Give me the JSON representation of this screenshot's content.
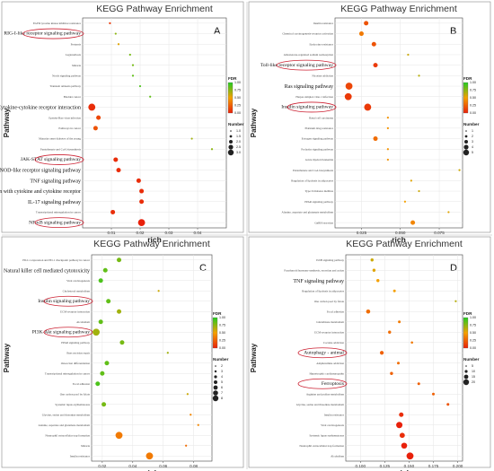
{
  "legend_labels": {
    "fdr": "FDR",
    "number": "Number"
  },
  "colors": {
    "low_fdr": "#e8200a",
    "mid_fdr": "#f5a000",
    "high_fdr": "#22cc22"
  },
  "chart_data": [
    {
      "type": "scatter",
      "title": "KEGG Pathway Enrichment",
      "panel_letter": "A",
      "xlabel": "rich",
      "ylabel": "Pathway",
      "xlim": [
        0,
        0.05
      ],
      "xticks": [
        0.01,
        0.02,
        0.03,
        0.04
      ],
      "tick_labels": [
        "0.01",
        "0.02",
        "0.03",
        "0.04"
      ],
      "fdr_colorbar": {
        "min": 0,
        "max": 1,
        "ticks": [
          "1.00",
          "0.75",
          "0.50",
          "0.25",
          "0.00"
        ]
      },
      "size_legend": [
        "1.0",
        "1.5",
        "2.0",
        "2.5",
        "3.0"
      ],
      "points": [
        {
          "pathway": "EGFR tyrosine kinase inhibitor resistance",
          "rich": 0.0095,
          "fdr": 0.1,
          "count": 1
        },
        {
          "pathway": "RIG-I-like receptor signaling pathway",
          "rich": 0.0115,
          "fdr": 0.75,
          "count": 1,
          "highlight": true
        },
        {
          "pathway": "Pertussis",
          "rich": 0.0125,
          "fdr": 0.55,
          "count": 1
        },
        {
          "pathway": "Legionellosis",
          "rich": 0.0165,
          "fdr": 0.8,
          "count": 1
        },
        {
          "pathway": "Malaria",
          "rich": 0.0175,
          "fdr": 0.8,
          "count": 1
        },
        {
          "pathway": "Notch signaling pathway",
          "rich": 0.0175,
          "fdr": 0.85,
          "count": 1
        },
        {
          "pathway": "Transient amnesia pathway",
          "rich": 0.02,
          "fdr": 0.9,
          "count": 1
        },
        {
          "pathway": "Bladder cancer",
          "rich": 0.0235,
          "fdr": 0.85,
          "count": 1
        },
        {
          "pathway": "Cytokine-cytokine receptor interaction",
          "rich": 0.0032,
          "fdr": 0.05,
          "count": 3,
          "emphasis": true
        },
        {
          "pathway": "Epstein-Barr virus infection",
          "rich": 0.0055,
          "fdr": 0.15,
          "count": 2
        },
        {
          "pathway": "Pathways in cancer",
          "rich": 0.0045,
          "fdr": 0.2,
          "count": 2
        },
        {
          "pathway": "Maturity onset diabetes of the young",
          "rich": 0.038,
          "fdr": 0.7,
          "count": 1
        },
        {
          "pathway": "Pantothenate and CoA biosynthesis",
          "rich": 0.045,
          "fdr": 0.75,
          "count": 1
        },
        {
          "pathway": "JAK-STAT signaling pathway",
          "rich": 0.0115,
          "fdr": 0.05,
          "count": 2,
          "highlight": true
        },
        {
          "pathway": "NOD-like receptor signaling pathway",
          "rich": 0.0125,
          "fdr": 0.05,
          "count": 2,
          "emphasis": true
        },
        {
          "pathway": "TNF signaling pathway",
          "rich": 0.0195,
          "fdr": 0.05,
          "count": 2,
          "emphasis": true
        },
        {
          "pathway": "Viral protein interaction with cytokine and cytokine receptor",
          "rich": 0.0205,
          "fdr": 0.05,
          "count": 2,
          "emphasis": true
        },
        {
          "pathway": "IL-17 signaling pathway",
          "rich": 0.0205,
          "fdr": 0.05,
          "count": 2,
          "emphasis": true
        },
        {
          "pathway": "Transcriptional misregulation in cancer",
          "rich": 0.0105,
          "fdr": 0.05,
          "count": 2
        },
        {
          "pathway": "NF-κB signaling pathway",
          "rich": 0.0205,
          "fdr": 0.0,
          "count": 3,
          "highlight": true
        }
      ]
    },
    {
      "type": "scatter",
      "title": "KEGG Pathway Enrichment",
      "panel_letter": "B",
      "xlabel": "rich",
      "ylabel": "Pathway",
      "xlim": [
        0.008,
        0.09
      ],
      "xticks": [
        0.025,
        0.05,
        0.075
      ],
      "tick_labels": [
        "0.025",
        "0.050",
        "0.075"
      ],
      "fdr_colorbar": {
        "min": 0,
        "max": 1,
        "ticks": [
          "1.00",
          "0.75",
          "0.50",
          "0.25",
          "0.00"
        ]
      },
      "size_legend": [
        "1",
        "2",
        "3",
        "4",
        "5"
      ],
      "points": [
        {
          "pathway": "Insulin resistance",
          "rich": 0.028,
          "fdr": 0.2,
          "count": 2
        },
        {
          "pathway": "Chemical carcinogenesis-receptor activation",
          "rich": 0.025,
          "fdr": 0.35,
          "count": 2
        },
        {
          "pathway": "Endocrine resistance",
          "rich": 0.033,
          "fdr": 0.2,
          "count": 2
        },
        {
          "pathway": "Aldosterone-regulated sodium reabsorption",
          "rich": 0.055,
          "fdr": 0.6,
          "count": 1
        },
        {
          "pathway": "Toll-like receptor signaling pathway",
          "rich": 0.034,
          "fdr": 0.1,
          "count": 2,
          "highlight": true
        },
        {
          "pathway": "Nicotine addiction",
          "rich": 0.062,
          "fdr": 0.65,
          "count": 1
        },
        {
          "pathway": "Ras signaling pathway",
          "rich": 0.017,
          "fdr": 0.15,
          "count": 3,
          "emphasis": true
        },
        {
          "pathway": "Herpes simplex virus 1 infection",
          "rich": 0.0165,
          "fdr": 0.1,
          "count": 3
        },
        {
          "pathway": "Insulin signaling pathway",
          "rich": 0.029,
          "fdr": 0.1,
          "count": 3,
          "highlight": true
        },
        {
          "pathway": "Renal cell carcinoma",
          "rich": 0.042,
          "fdr": 0.45,
          "count": 1
        },
        {
          "pathway": "Platinum drug resistance",
          "rich": 0.042,
          "fdr": 0.45,
          "count": 1
        },
        {
          "pathway": "Estrogen signaling pathway",
          "rich": 0.034,
          "fdr": 0.3,
          "count": 2
        },
        {
          "pathway": "Prolactin signaling pathway",
          "rich": 0.042,
          "fdr": 0.45,
          "count": 1
        },
        {
          "pathway": "Acute myeloid leukemia",
          "rich": 0.042,
          "fdr": 0.45,
          "count": 1
        },
        {
          "pathway": "Pantothenate and CoA biosynthesis",
          "rich": 0.088,
          "fdr": 0.6,
          "count": 1
        },
        {
          "pathway": "Regulation of lipolysis in adipocytes",
          "rich": 0.057,
          "fdr": 0.55,
          "count": 1
        },
        {
          "pathway": "Type II diabetes mellitus",
          "rich": 0.062,
          "fdr": 0.6,
          "count": 1
        },
        {
          "pathway": "PPAR signaling pathway",
          "rich": 0.053,
          "fdr": 0.5,
          "count": 1
        },
        {
          "pathway": "Alanine, aspartate and glutamate metabolism",
          "rich": 0.081,
          "fdr": 0.55,
          "count": 1
        },
        {
          "pathway": "GnRH secretion",
          "rich": 0.058,
          "fdr": 0.4,
          "count": 2
        }
      ]
    },
    {
      "type": "scatter",
      "title": "KEGG Pathway Enrichment",
      "panel_letter": "C",
      "xlabel": "rich",
      "ylabel": "Pathway",
      "xlim": [
        0.013,
        0.092
      ],
      "xticks": [
        0.02,
        0.04,
        0.06,
        0.08
      ],
      "tick_labels": [
        "0.02",
        "0.04",
        "0.06",
        "0.08"
      ],
      "fdr_colorbar": {
        "min": 0,
        "max": 1,
        "ticks": [
          "1.00",
          "0.75",
          "0.50",
          "0.25",
          "0.00"
        ]
      },
      "size_legend": [
        "2",
        "3",
        "4",
        "5",
        "6",
        "7",
        "8"
      ],
      "points": [
        {
          "pathway": "PD-L1 expression and PD-1 checkpoint pathway in cancer",
          "rich": 0.031,
          "fdr": 0.8,
          "count": 3
        },
        {
          "pathway": "Natural killer cell mediated cytotoxicity",
          "rich": 0.022,
          "fdr": 0.85,
          "count": 3,
          "emphasis": true
        },
        {
          "pathway": "Viral carcinogenesis",
          "rich": 0.019,
          "fdr": 0.9,
          "count": 3
        },
        {
          "pathway": "Cholesterol metabolism",
          "rich": 0.057,
          "fdr": 0.6,
          "count": 2
        },
        {
          "pathway": "Insulin signaling pathway",
          "rich": 0.024,
          "fdr": 0.85,
          "count": 3,
          "highlight": true
        },
        {
          "pathway": "ECM-receptor interaction",
          "rich": 0.031,
          "fdr": 0.7,
          "count": 3
        },
        {
          "pathway": "Alcoholism",
          "rich": 0.019,
          "fdr": 0.85,
          "count": 3
        },
        {
          "pathway": "PI3K-Akt signaling pathway",
          "rich": 0.016,
          "fdr": 0.7,
          "count": 4,
          "highlight": true
        },
        {
          "pathway": "PPAR signaling pathway",
          "rich": 0.033,
          "fdr": 0.8,
          "count": 3
        },
        {
          "pathway": "Bass excision repair",
          "rich": 0.063,
          "fdr": 0.7,
          "count": 2
        },
        {
          "pathway": "Osteoclast differentiation",
          "rich": 0.023,
          "fdr": 0.85,
          "count": 3
        },
        {
          "pathway": "Transcriptional misregulation in cancer",
          "rich": 0.02,
          "fdr": 0.85,
          "count": 3
        },
        {
          "pathway": "Focal adhesion",
          "rich": 0.017,
          "fdr": 0.9,
          "count": 3
        },
        {
          "pathway": "One carbon pool by folate",
          "rich": 0.076,
          "fdr": 0.6,
          "count": 2
        },
        {
          "pathway": "Systemic lupus erythematosus",
          "rich": 0.021,
          "fdr": 0.8,
          "count": 3
        },
        {
          "pathway": "Glycine, serine and threonine metabolism",
          "rich": 0.078,
          "fdr": 0.4,
          "count": 2
        },
        {
          "pathway": "Alanine, aspartate and glutamate metabolism",
          "rich": 0.083,
          "fdr": 0.4,
          "count": 2
        },
        {
          "pathway": "Neutrophil extracellular trap formation",
          "rich": 0.031,
          "fdr": 0.35,
          "count": 4
        },
        {
          "pathway": "Malaria",
          "rich": 0.075,
          "fdr": 0.3,
          "count": 2
        },
        {
          "pathway": "Insulin resistance",
          "rich": 0.051,
          "fdr": 0.35,
          "count": 4
        }
      ]
    },
    {
      "type": "scatter",
      "title": "KEGG Pathway Enrichment",
      "panel_letter": "D",
      "xlabel": "rich",
      "ylabel": "Pathway",
      "xlim": [
        0.085,
        0.205
      ],
      "xticks": [
        0.1,
        0.125,
        0.15,
        0.175,
        0.2
      ],
      "tick_labels": [
        "0.100",
        "0.125",
        "0.150",
        "0.175",
        "0.200"
      ],
      "fdr_colorbar": {
        "min": 0,
        "max": 1,
        "ticks": [
          "1.00",
          "0.75",
          "0.50",
          "0.25",
          "0.00"
        ]
      },
      "size_legend": [
        "5",
        "10",
        "15",
        "20"
      ],
      "points": [
        {
          "pathway": "ErbB signaling pathway",
          "rich": 0.112,
          "fdr": 0.6,
          "count": 5
        },
        {
          "pathway": "Parathyroid hormone synthesis, secretion and action",
          "rich": 0.114,
          "fdr": 0.55,
          "count": 5
        },
        {
          "pathway": "TNF signaling pathway",
          "rich": 0.118,
          "fdr": 0.5,
          "count": 5,
          "emphasis": true
        },
        {
          "pathway": "Regulation of lipolysis in adipocytes",
          "rich": 0.135,
          "fdr": 0.5,
          "count": 4
        },
        {
          "pathway": "One carbon pool by folate",
          "rich": 0.198,
          "fdr": 0.65,
          "count": 2
        },
        {
          "pathway": "Focal adhesion",
          "rich": 0.108,
          "fdr": 0.3,
          "count": 8
        },
        {
          "pathway": "Glutathione metabolism",
          "rich": 0.14,
          "fdr": 0.35,
          "count": 4
        },
        {
          "pathway": "ECM-receptor interaction",
          "rich": 0.13,
          "fdr": 0.3,
          "count": 5
        },
        {
          "pathway": "Cocaine addiction",
          "rich": 0.153,
          "fdr": 0.35,
          "count": 3
        },
        {
          "pathway": "Autophagy - animal",
          "rich": 0.122,
          "fdr": 0.25,
          "count": 7,
          "highlight": true
        },
        {
          "pathway": "Amphetamine addiction",
          "rich": 0.139,
          "fdr": 0.3,
          "count": 4
        },
        {
          "pathway": "Hypertrophic cardiomyopathy",
          "rich": 0.132,
          "fdr": 0.25,
          "count": 5
        },
        {
          "pathway": "Ferroptosis",
          "rich": 0.16,
          "fdr": 0.25,
          "count": 4,
          "highlight": true
        },
        {
          "pathway": "Arginine and proline metabolism",
          "rich": 0.175,
          "fdr": 0.25,
          "count": 4
        },
        {
          "pathway": "Glycine, serine and threonine metabolism",
          "rich": 0.19,
          "fdr": 0.2,
          "count": 4
        },
        {
          "pathway": "Insulin resistance",
          "rich": 0.142,
          "fdr": 0.05,
          "count": 9
        },
        {
          "pathway": "Viral carcinogenesis",
          "rich": 0.14,
          "fdr": 0.0,
          "count": 14
        },
        {
          "pathway": "Systemic lupus erythematosus",
          "rich": 0.143,
          "fdr": 0.05,
          "count": 11
        },
        {
          "pathway": "Neutrophil extracellular trap formation",
          "rich": 0.145,
          "fdr": 0.0,
          "count": 13
        },
        {
          "pathway": "Alcoholism",
          "rich": 0.151,
          "fdr": 0.0,
          "count": 16
        }
      ]
    }
  ]
}
